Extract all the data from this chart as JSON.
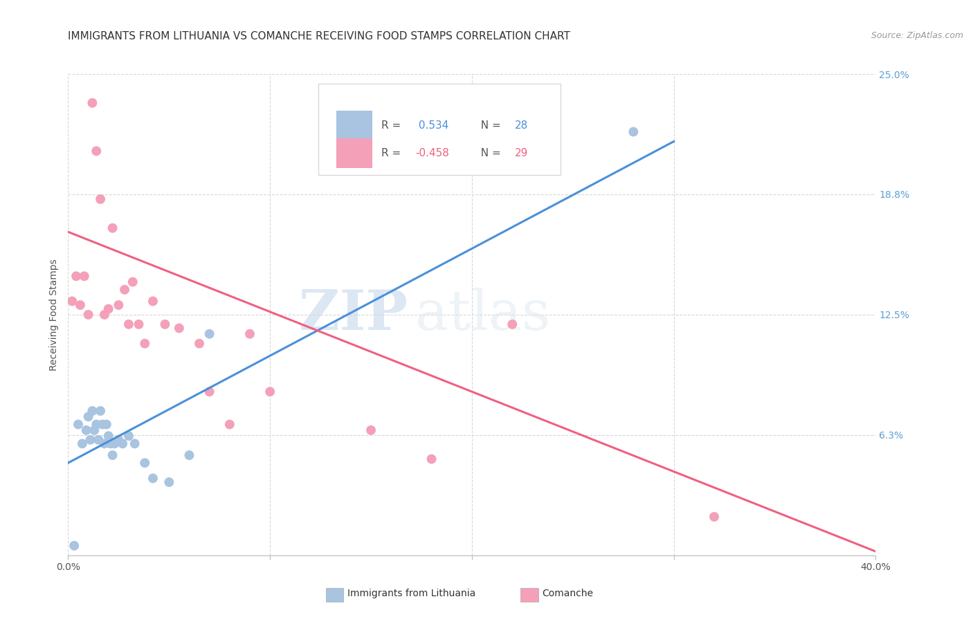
{
  "title": "IMMIGRANTS FROM LITHUANIA VS COMANCHE RECEIVING FOOD STAMPS CORRELATION CHART",
  "source": "Source: ZipAtlas.com",
  "ylabel": "Receiving Food Stamps",
  "xlim": [
    0.0,
    0.4
  ],
  "ylim": [
    0.0,
    0.25
  ],
  "xticks": [
    0.0,
    0.1,
    0.2,
    0.3,
    0.4
  ],
  "xticklabels": [
    "0.0%",
    "",
    "",
    "",
    "40.0%"
  ],
  "yticks": [
    0.0,
    0.0625,
    0.125,
    0.1875,
    0.25
  ],
  "yticklabels": [
    "",
    "6.3%",
    "12.5%",
    "18.8%",
    "25.0%"
  ],
  "blue_color": "#a8c4e0",
  "pink_color": "#f4a0b8",
  "blue_line_color": "#4a90d9",
  "pink_line_color": "#f06080",
  "watermark_zip": "ZIP",
  "watermark_atlas": "atlas",
  "background_color": "#ffffff",
  "grid_color": "#d8d8d8",
  "right_tick_color": "#5a9fd4",
  "blue_scatter_x": [
    0.003,
    0.005,
    0.007,
    0.009,
    0.01,
    0.011,
    0.012,
    0.013,
    0.014,
    0.015,
    0.016,
    0.017,
    0.018,
    0.019,
    0.02,
    0.021,
    0.022,
    0.023,
    0.025,
    0.027,
    0.03,
    0.033,
    0.038,
    0.042,
    0.05,
    0.06,
    0.07,
    0.28
  ],
  "blue_scatter_y": [
    0.005,
    0.068,
    0.058,
    0.065,
    0.072,
    0.06,
    0.075,
    0.065,
    0.068,
    0.06,
    0.075,
    0.068,
    0.058,
    0.068,
    0.062,
    0.058,
    0.052,
    0.058,
    0.06,
    0.058,
    0.062,
    0.058,
    0.048,
    0.04,
    0.038,
    0.052,
    0.115,
    0.22
  ],
  "pink_scatter_x": [
    0.002,
    0.004,
    0.006,
    0.008,
    0.01,
    0.012,
    0.014,
    0.016,
    0.018,
    0.02,
    0.022,
    0.025,
    0.028,
    0.03,
    0.032,
    0.035,
    0.038,
    0.042,
    0.048,
    0.055,
    0.065,
    0.07,
    0.08,
    0.09,
    0.1,
    0.15,
    0.18,
    0.22,
    0.32
  ],
  "pink_scatter_y": [
    0.132,
    0.145,
    0.13,
    0.145,
    0.125,
    0.235,
    0.21,
    0.185,
    0.125,
    0.128,
    0.17,
    0.13,
    0.138,
    0.12,
    0.142,
    0.12,
    0.11,
    0.132,
    0.12,
    0.118,
    0.11,
    0.085,
    0.068,
    0.115,
    0.085,
    0.065,
    0.05,
    0.12,
    0.02
  ],
  "blue_trend_x": [
    0.0,
    0.3
  ],
  "blue_trend_y": [
    0.048,
    0.215
  ],
  "pink_trend_x": [
    0.0,
    0.4
  ],
  "pink_trend_y": [
    0.168,
    0.002
  ],
  "title_fontsize": 11,
  "axis_label_fontsize": 10,
  "tick_fontsize": 10,
  "legend_fontsize": 11
}
